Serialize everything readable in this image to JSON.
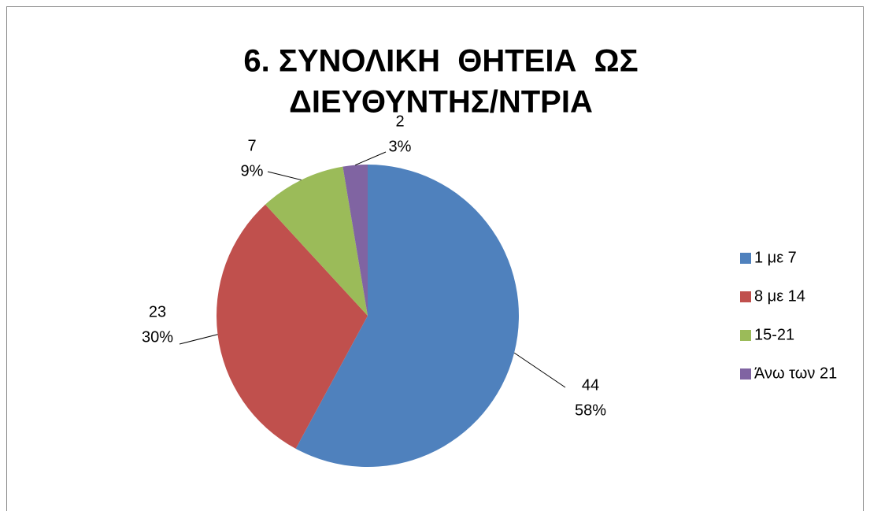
{
  "chart_data": {
    "type": "pie",
    "title": [
      "6. ΣΥΝΟΛΙΚΗ  ΘΗΤΕΙΑ  ΩΣ",
      "ΔΙΕΥΘΥΝΤΗΣ/ΝΤΡΙΑ"
    ],
    "categories": [
      "1 με 7",
      "8 με 14",
      "15-21",
      "Άνω των 21"
    ],
    "values": [
      44,
      23,
      7,
      2
    ],
    "percentages": [
      58,
      30,
      9,
      3
    ],
    "percentage_labels": [
      "58%",
      "30%",
      "9%",
      "3%"
    ],
    "colors": [
      "#4f81bd",
      "#c0504d",
      "#9bbb59",
      "#8064a2"
    ],
    "legend": "right"
  }
}
